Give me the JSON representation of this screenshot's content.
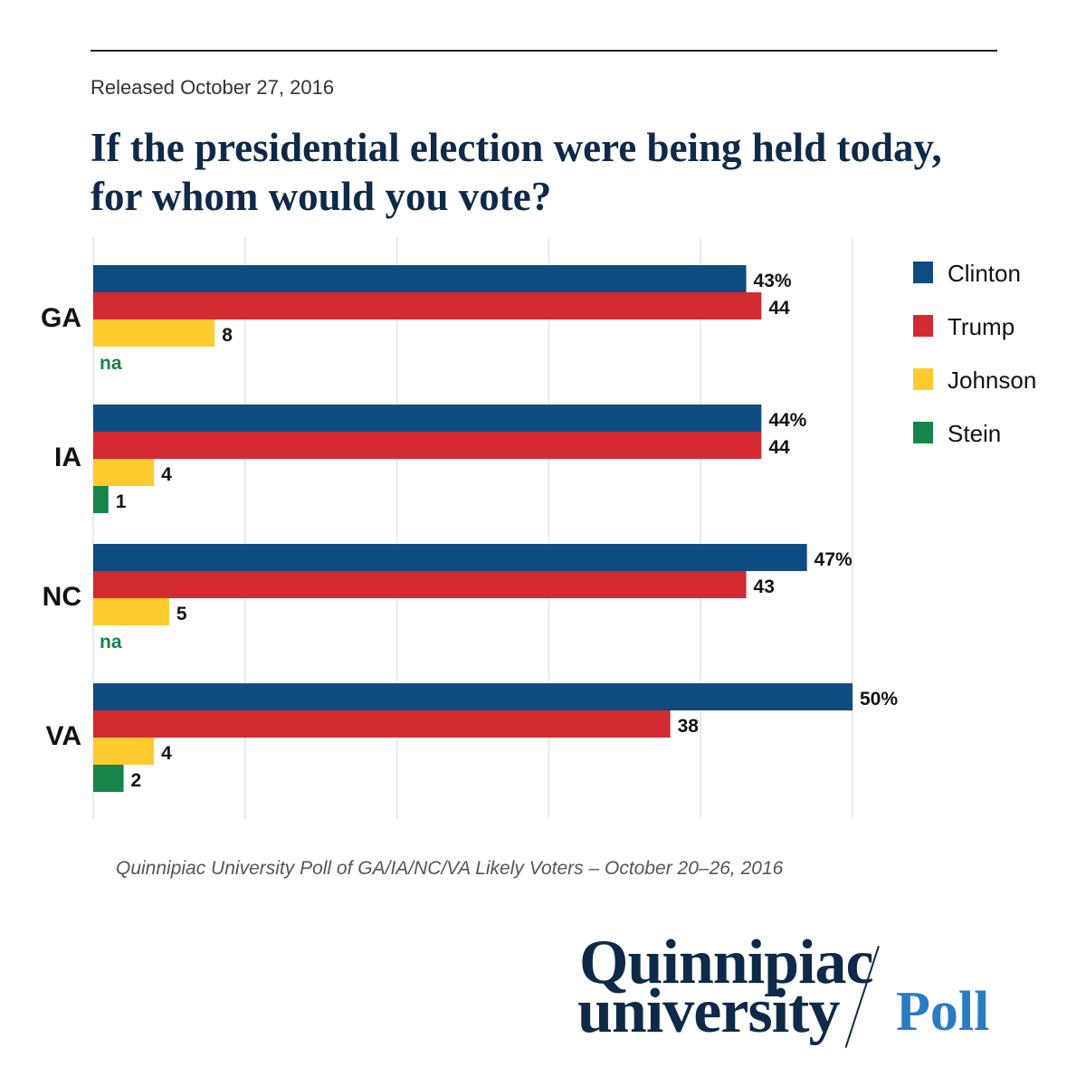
{
  "header": {
    "released": "Released October 27, 2016"
  },
  "chart_data": {
    "type": "bar",
    "orientation": "horizontal",
    "title": "If the presidential election were being held today, for whom would you vote?",
    "categories": [
      "GA",
      "IA",
      "NC",
      "VA"
    ],
    "xlim": [
      0,
      50
    ],
    "grid": true,
    "legend_position": "top-right",
    "series": [
      {
        "name": "Clinton",
        "color": "#0f4c81",
        "values": [
          43,
          44,
          47,
          50
        ],
        "labels": [
          "43%",
          "44%",
          "47%",
          "50%"
        ]
      },
      {
        "name": "Trump",
        "color": "#d42a32",
        "values": [
          44,
          44,
          43,
          38
        ],
        "labels": [
          "44",
          "44",
          "43",
          "38"
        ]
      },
      {
        "name": "Johnson",
        "color": "#ffcb2e",
        "values": [
          8,
          4,
          5,
          4
        ],
        "labels": [
          "8",
          "4",
          "5",
          "4"
        ]
      },
      {
        "name": "Stein",
        "color": "#17844a",
        "values": [
          null,
          1,
          null,
          2
        ],
        "labels": [
          "na",
          "1",
          "na",
          "2"
        ]
      }
    ]
  },
  "footer": {
    "caption": "Quinnipiac University Poll of GA/IA/NC/VA Likely Voters – October 20–26, 2016"
  },
  "logo": {
    "line1": "Quinnipiac",
    "line2": "university",
    "poll": "Poll"
  }
}
